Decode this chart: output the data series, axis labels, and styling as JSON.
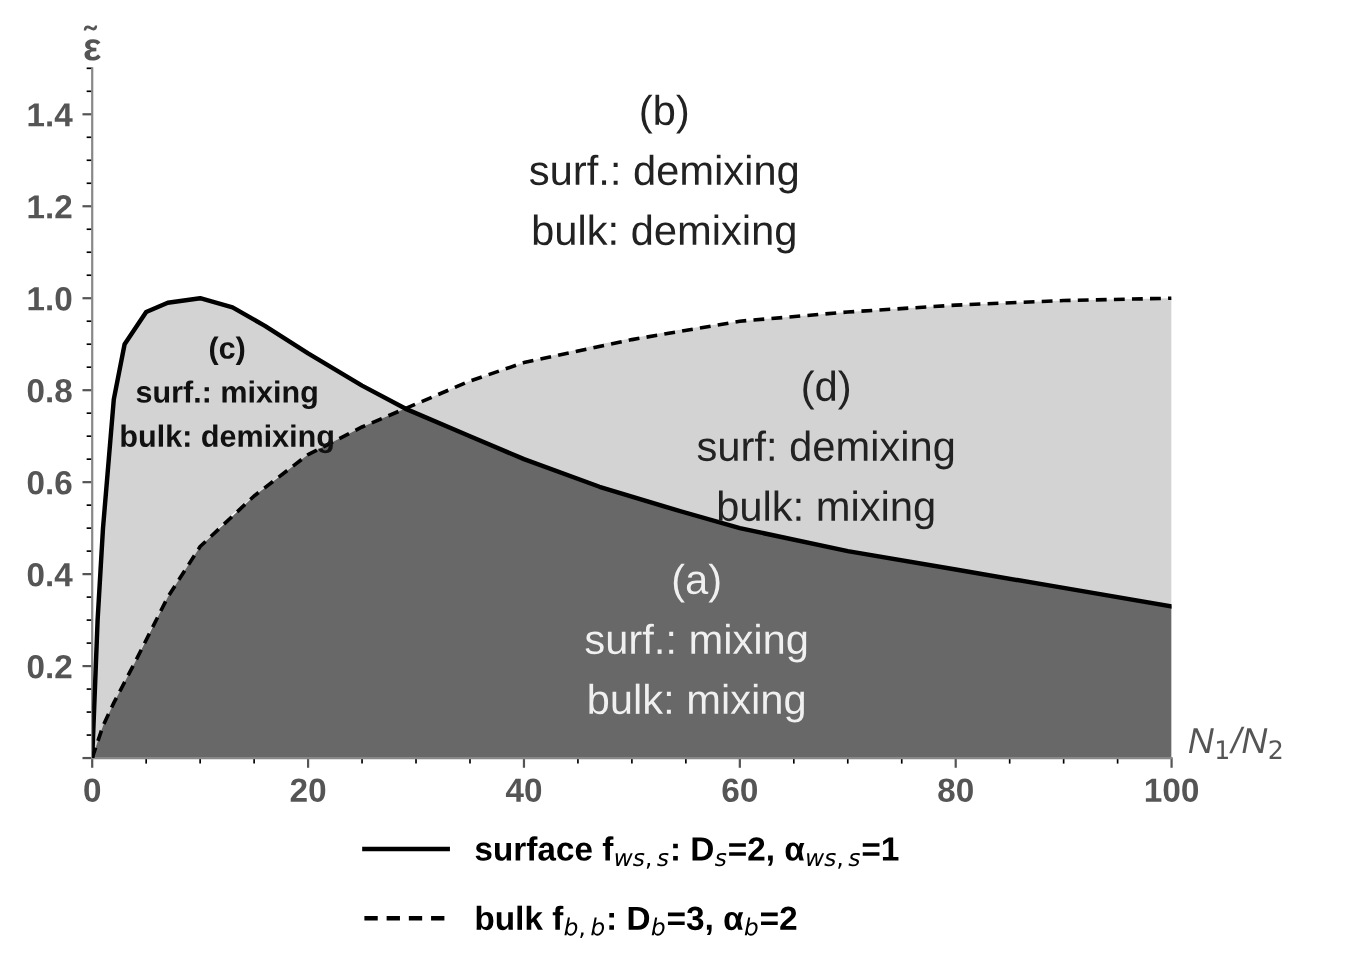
{
  "chart_data": {
    "type": "line",
    "xlabel": "N$_{1}$/N$_{2}$",
    "ylabel": "ε̃",
    "xlim": [
      0,
      100
    ],
    "ylim": [
      0,
      1.5
    ],
    "xticks": [
      0,
      20,
      40,
      60,
      80,
      100
    ],
    "yticks": [
      {
        "value": 0,
        "label": null
      },
      0.2,
      0.4,
      0.6,
      0.8,
      {
        "value": 1.0,
        "label": "1.0"
      },
      1.2,
      1.4
    ],
    "series": [
      {
        "name": "surface f$_{ws,s}$: D$_{s}$=2, α$_{ws,s}$=1",
        "color": "#000000",
        "line_style": "solid",
        "x": [
          0,
          0.5,
          1,
          2,
          3,
          5,
          7,
          10,
          13,
          16,
          20,
          25,
          29,
          35,
          40,
          47,
          54,
          60,
          70,
          80,
          90,
          100
        ],
        "values": [
          0,
          0.3,
          0.5,
          0.78,
          0.9,
          0.97,
          0.99,
          1.0,
          0.98,
          0.94,
          0.88,
          0.81,
          0.76,
          0.7,
          0.65,
          0.59,
          0.54,
          0.5,
          0.45,
          0.41,
          0.37,
          0.33
        ],
        "lower": [
          0,
          0.03,
          0.07,
          0.12,
          0.16,
          0.26,
          0.35,
          0.46,
          0.53,
          0.59,
          0.66,
          0.72,
          0.76,
          0.7,
          0.65,
          0.59,
          0.54,
          0.5,
          0.45,
          0.41,
          0.37,
          0.33
        ],
        "upper": [
          0,
          0.3,
          0.5,
          0.78,
          0.9,
          0.97,
          0.99,
          1.0,
          0.98,
          0.94,
          0.88,
          0.81,
          0.76,
          0.82,
          0.86,
          0.9,
          0.93,
          0.95,
          0.97,
          0.985,
          0.995,
          1.0
        ]
      },
      {
        "name": "bulk f$_{b,b}$: D$_{b}$=3, α$_{b}$=2",
        "color": "#000000",
        "line_style": "dashed",
        "x": [
          0,
          1,
          2,
          4,
          7,
          10,
          15,
          20,
          25,
          29,
          35,
          40,
          50,
          60,
          70,
          80,
          90,
          100
        ],
        "values": [
          0,
          0.07,
          0.12,
          0.21,
          0.35,
          0.46,
          0.57,
          0.66,
          0.72,
          0.76,
          0.82,
          0.86,
          0.91,
          0.95,
          0.97,
          0.985,
          0.995,
          1.0
        ],
        "lower": [
          0,
          0,
          0,
          0,
          0,
          0,
          0,
          0,
          0,
          0,
          0,
          0,
          0,
          0,
          0,
          0,
          0,
          0
        ],
        "upper": [
          0,
          0.07,
          0.12,
          0.21,
          0.35,
          0.46,
          0.57,
          0.66,
          0.72,
          0.76,
          0.7,
          0.65,
          0.565,
          0.5,
          0.45,
          0.41,
          0.37,
          0.33
        ]
      }
    ],
    "annotations": [
      "(a)\nsurf.: mixing\nbulk: mixing",
      "(b)\nsurf.: demixing\nbulk: demixing",
      "(c)\nsurf.: mixing\nbulk: demixing",
      "(d)\nsurf: demixing\nbulk: mixing"
    ],
    "legend": "bottom",
    "grid": false,
    "marker": "none"
  }
}
